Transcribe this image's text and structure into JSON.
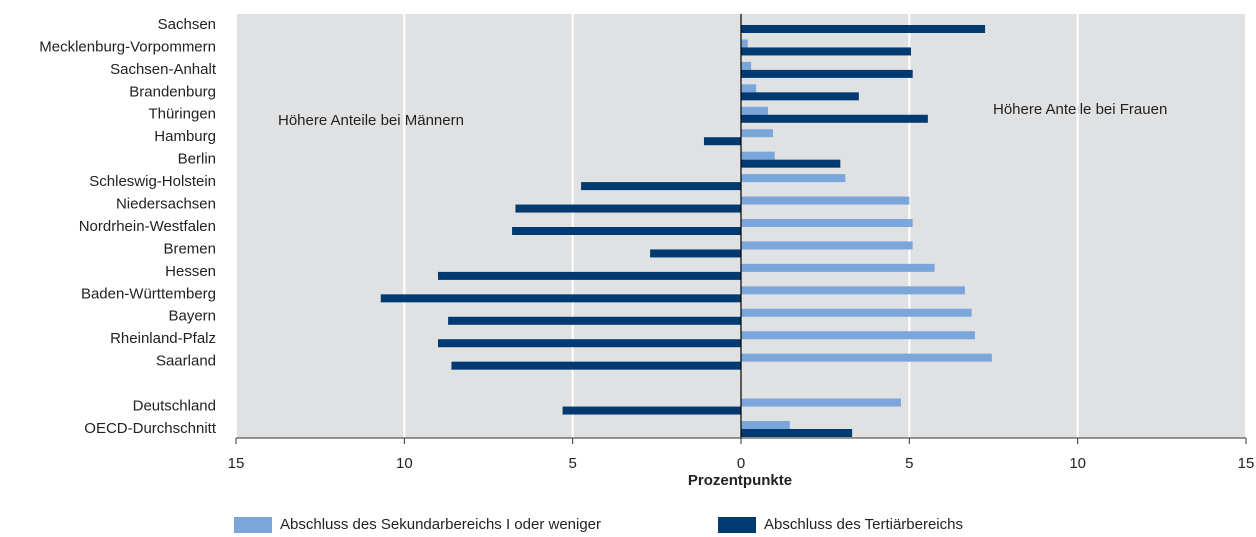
{
  "chart_data": {
    "type": "hbar",
    "xlabel": "Prozentpunkte",
    "annotations": [
      "Höhere Anteile bei Männern",
      "Höhere Anteile bei Frauen"
    ],
    "categories": [
      "Sachsen",
      "Mecklenburg-Vorpommern",
      "Sachsen-Anhalt",
      "Brandenburg",
      "Thüringen",
      "Hamburg",
      "Berlin",
      "Schleswig-Holstein",
      "Niedersachsen",
      "Nordrhein-Westfalen",
      "Bremen",
      "Hessen",
      "Baden-Württemberg",
      "Bayern",
      "Rheinland-Pfalz",
      "Saarland",
      null,
      "Deutschland",
      "OECD-Durchschnitt"
    ],
    "series": [
      {
        "name": "Abschluss des Sekundarbereichs I oder weniger",
        "color": "#7aa6dc",
        "values": [
          0,
          0.2,
          0.3,
          0.45,
          0.8,
          0.95,
          1.0,
          3.1,
          5.0,
          5.1,
          5.1,
          5.75,
          6.65,
          6.85,
          6.95,
          7.45,
          null,
          4.75,
          1.45
        ]
      },
      {
        "name": "Abschluss des Tertiärbereichs",
        "color": "#003a70",
        "values": [
          7.25,
          5.05,
          5.1,
          3.5,
          5.55,
          -1.1,
          2.95,
          -4.75,
          -6.7,
          -6.8,
          -2.7,
          -9.0,
          -10.7,
          -8.7,
          -9.0,
          -8.6,
          null,
          -5.3,
          3.3
        ]
      }
    ],
    "xlim": [
      -15,
      15
    ],
    "xticks": [
      {
        "value": -15,
        "label": "15"
      },
      {
        "value": -10,
        "label": "10"
      },
      {
        "value": -5,
        "label": "5"
      },
      0,
      5,
      10,
      15
    ],
    "grid": true,
    "legend": "bottom"
  }
}
